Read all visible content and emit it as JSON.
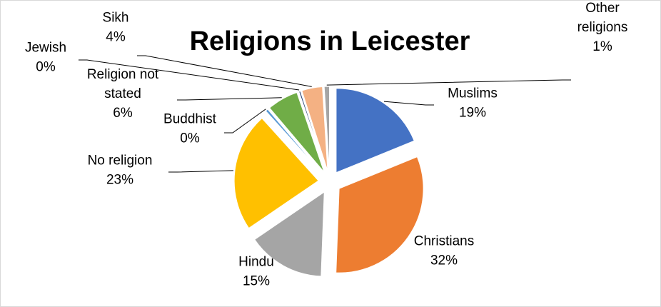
{
  "chart_data": {
    "type": "pie",
    "title": "Religions in Leicester",
    "exploded": true,
    "slices": [
      {
        "label": "Muslims",
        "pct_label": "19%",
        "value": 19,
        "color": "#4472C4"
      },
      {
        "label": "Christians",
        "pct_label": "32%",
        "value": 32,
        "color": "#ED7D31"
      },
      {
        "label": "Hindu",
        "pct_label": "15%",
        "value": 15,
        "color": "#A5A5A5"
      },
      {
        "label": "No religion",
        "pct_label": "23%",
        "value": 23,
        "color": "#FFC000"
      },
      {
        "label": "Buddhist",
        "pct_label": "0%",
        "value": 0.5,
        "color": "#5B9BD5"
      },
      {
        "label": "Religion not stated",
        "pct_label": "6%",
        "value": 6,
        "color": "#70AD47"
      },
      {
        "label": "Jewish",
        "pct_label": "0%",
        "value": 0.3,
        "color": "#264478"
      },
      {
        "label": "Sikh",
        "pct_label": "4%",
        "value": 4,
        "color": "#F4B183"
      },
      {
        "label": "Other religions",
        "pct_label": "1%",
        "value": 1,
        "color": "#A5A5A5"
      }
    ]
  }
}
